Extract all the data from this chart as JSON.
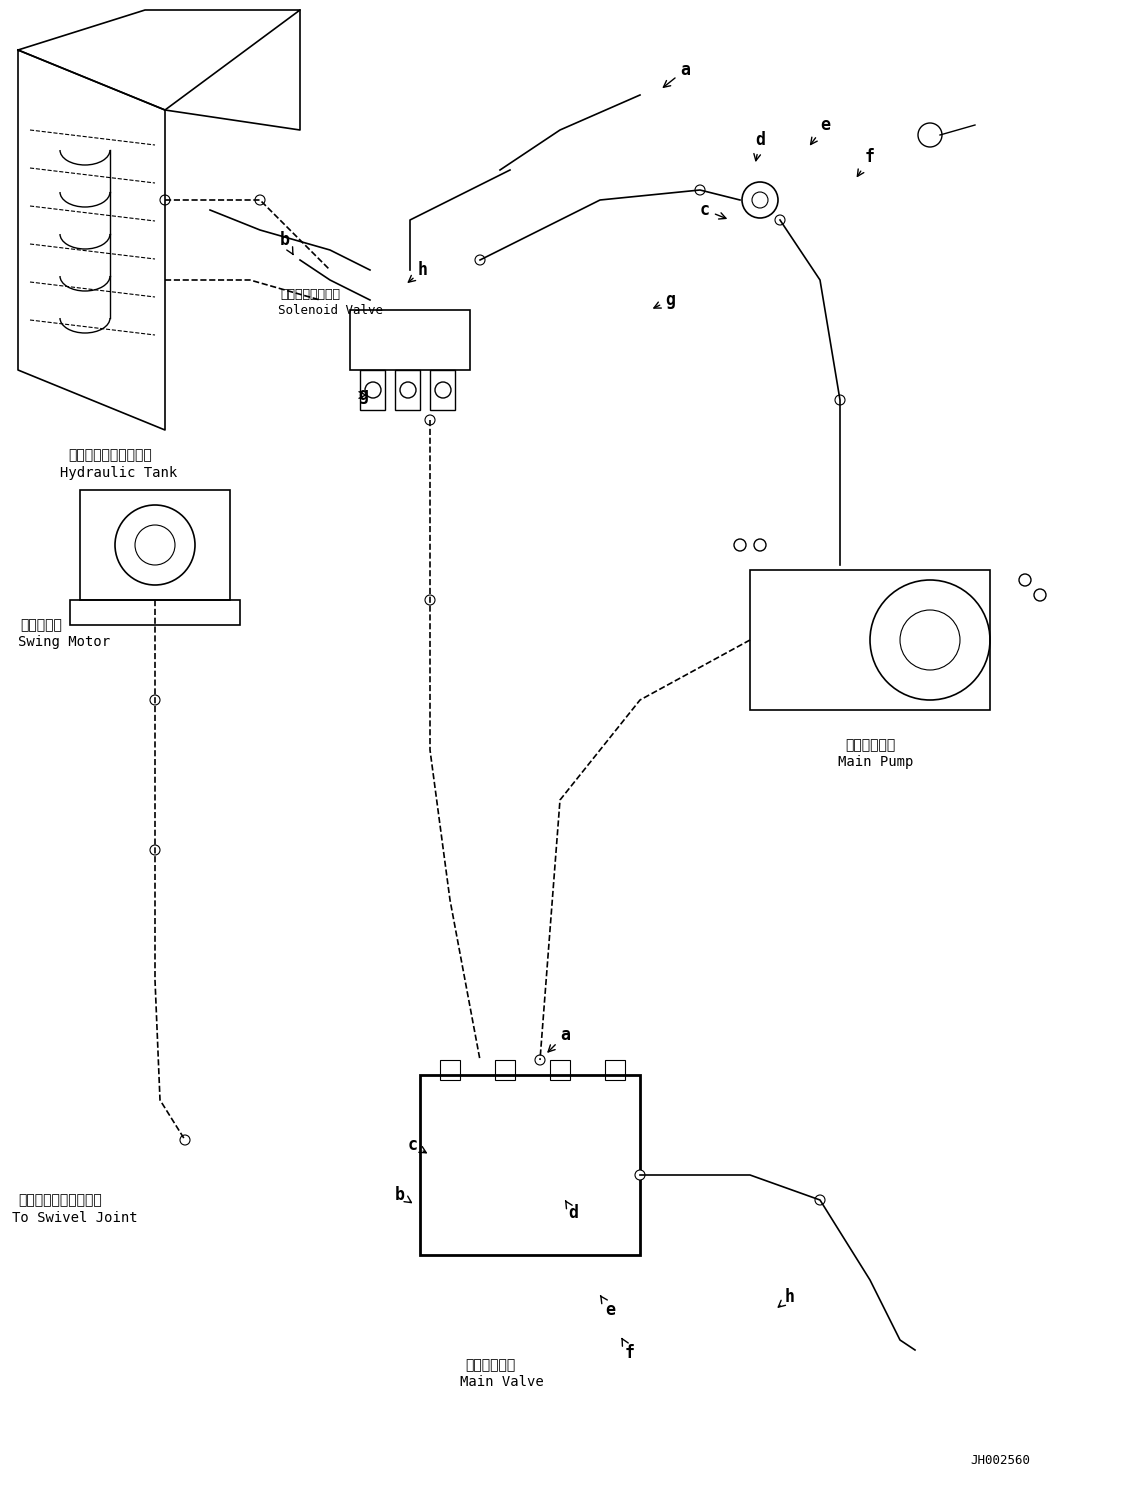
{
  "title": "",
  "bg_color": "#ffffff",
  "line_color": "#000000",
  "fig_width": 11.33,
  "fig_height": 14.91,
  "dpi": 100,
  "labels": {
    "hydraulic_tank_jp": "ハイドロリックタンク",
    "hydraulic_tank_en": "Hydraulic Tank",
    "solenoid_valve_jp": "ソレノイドバルブ",
    "solenoid_valve_en": "Solenoid Valve",
    "swing_motor_jp": "旋回モータ",
    "swing_motor_en": "Swing Motor",
    "swivel_joint_jp": "スイベルジョイントへ",
    "swivel_joint_en": "To Swivel Joint",
    "main_pump_jp": "メインポンプ",
    "main_pump_en": "Main Pump",
    "main_valve_jp": "メインバルブ",
    "main_valve_en": "Main Valve",
    "part_number": "JH002560"
  },
  "callout_labels": [
    "a",
    "b",
    "c",
    "d",
    "e",
    "f",
    "g",
    "h"
  ],
  "font_size_label": 9,
  "font_size_part": 10,
  "font_size_pn": 9
}
